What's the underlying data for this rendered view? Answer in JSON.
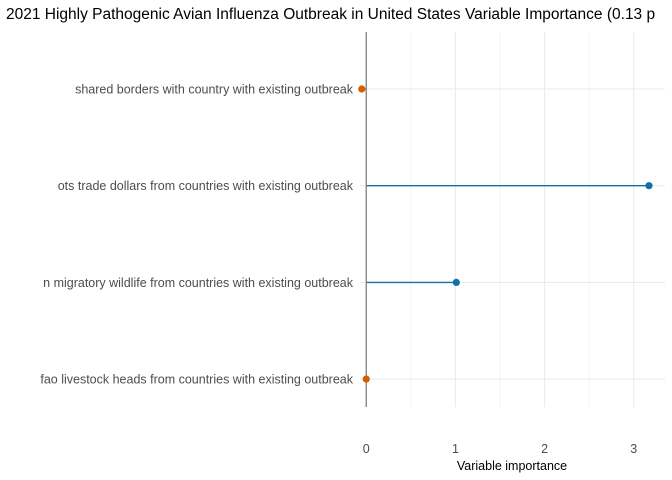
{
  "chart_data": {
    "type": "lollipop",
    "title": "2021 Highly Pathogenic Avian Influenza Outbreak in United States Variable Importance (0.13 p",
    "xlabel": "Variable importance",
    "ylabel": "",
    "xlim": [
      -0.07,
      3.35
    ],
    "x_ticks": [
      0,
      1,
      2,
      3
    ],
    "grid": true,
    "categories": [
      "shared borders with country with existing outbreak",
      "ots trade dollars from countries with existing outbreak",
      "n migratory wildlife from countries with existing outbreak",
      "fao livestock heads from countries with existing outbreak"
    ],
    "values": [
      -0.05,
      3.17,
      1.01,
      0.0
    ],
    "colors": {
      "positive": "#1170aa",
      "negative": "#d55e00",
      "zero_line": "#7f7f7f",
      "grid": "#ebebeb"
    }
  }
}
